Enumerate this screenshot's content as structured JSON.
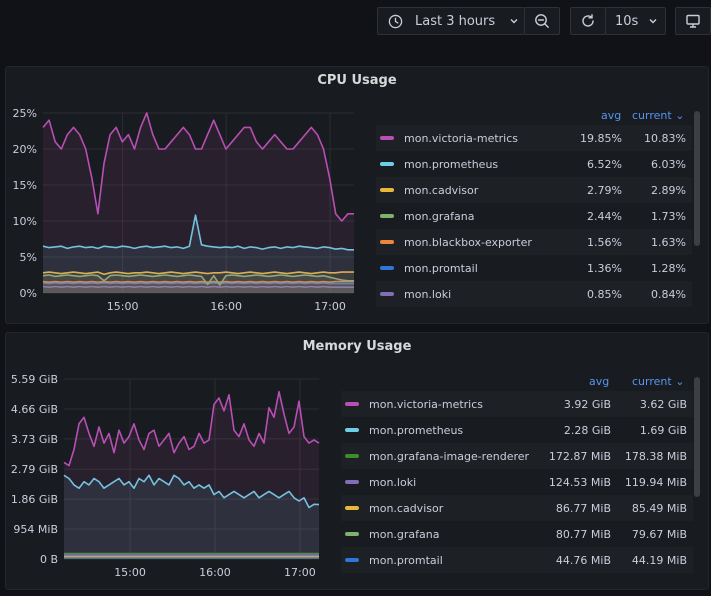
{
  "toolbar": {
    "time_range": "Last 3 hours",
    "refresh_interval": "10s"
  },
  "colors": {
    "victoria": "#b84fb4",
    "prometheus": "#6ccfe6",
    "cadvisor": "#eab839",
    "grafana": "#7eb26d",
    "blackbox": "#ef843c",
    "promtail": "#3274d9",
    "loki": "#806eb7",
    "grafana_image_renderer": "#3f8a2f"
  },
  "cpu": {
    "title": "CPU Usage",
    "legend_headers": {
      "avg": "avg",
      "current": "current"
    },
    "legend": [
      {
        "name": "mon.victoria-metrics",
        "avg": "19.85%",
        "current": "10.83%",
        "color": "#b84fb4"
      },
      {
        "name": "mon.prometheus",
        "avg": "6.52%",
        "current": "6.03%",
        "color": "#6ccfe6"
      },
      {
        "name": "mon.cadvisor",
        "avg": "2.79%",
        "current": "2.89%",
        "color": "#eab839"
      },
      {
        "name": "mon.grafana",
        "avg": "2.44%",
        "current": "1.73%",
        "color": "#7eb26d"
      },
      {
        "name": "mon.blackbox-exporter",
        "avg": "1.56%",
        "current": "1.63%",
        "color": "#ef843c"
      },
      {
        "name": "mon.promtail",
        "avg": "1.36%",
        "current": "1.28%",
        "color": "#3274d9"
      },
      {
        "name": "mon.loki",
        "avg": "0.85%",
        "current": "0.84%",
        "color": "#806eb7"
      }
    ]
  },
  "memory": {
    "title": "Memory Usage",
    "legend_headers": {
      "avg": "avg",
      "current": "current"
    },
    "legend": [
      {
        "name": "mon.victoria-metrics",
        "avg": "3.92 GiB",
        "current": "3.62 GiB",
        "color": "#b84fb4"
      },
      {
        "name": "mon.prometheus",
        "avg": "2.28 GiB",
        "current": "1.69 GiB",
        "color": "#6ccfe6"
      },
      {
        "name": "mon.grafana-image-renderer",
        "avg": "172.87 MiB",
        "current": "178.38 MiB",
        "color": "#3f8a2f"
      },
      {
        "name": "mon.loki",
        "avg": "124.53 MiB",
        "current": "119.94 MiB",
        "color": "#806eb7"
      },
      {
        "name": "mon.cadvisor",
        "avg": "86.77 MiB",
        "current": "85.49 MiB",
        "color": "#eab839"
      },
      {
        "name": "mon.grafana",
        "avg": "80.77 MiB",
        "current": "79.67 MiB",
        "color": "#7eb26d"
      },
      {
        "name": "mon.promtail",
        "avg": "44.76 MiB",
        "current": "44.19 MiB",
        "color": "#3274d9"
      }
    ]
  },
  "chart_data": [
    {
      "type": "line",
      "title": "CPU Usage",
      "y_ticks": [
        "0%",
        "5%",
        "10%",
        "15%",
        "20%",
        "25%"
      ],
      "ylim": [
        0,
        25
      ],
      "x_ticks": [
        "15:00",
        "16:00",
        "17:00"
      ],
      "grid": true,
      "legend_placement": "right",
      "series": [
        {
          "name": "mon.victoria-metrics",
          "color": "#b84fb4",
          "values": [
            23,
            24,
            21,
            20,
            22,
            23,
            22,
            20,
            16,
            11,
            18,
            22,
            23,
            21,
            22,
            20,
            23,
            25,
            22,
            20,
            20,
            21,
            22,
            23,
            22,
            20,
            20,
            22,
            24,
            22,
            20,
            21,
            22,
            23,
            23,
            21,
            20,
            21,
            22,
            21,
            20,
            20,
            21,
            22,
            23,
            22,
            20,
            16,
            11,
            10,
            11,
            11
          ]
        },
        {
          "name": "mon.prometheus",
          "color": "#6ccfe6",
          "values": [
            6.5,
            6.3,
            6.4,
            6.5,
            6.2,
            6.4,
            6.5,
            6.3,
            6.4,
            6.2,
            6.5,
            6.4,
            6.3,
            6.5,
            6.4,
            6.2,
            6.4,
            6.5,
            6.3,
            6.4,
            6.5,
            6.3,
            6.4,
            6.2,
            6.5,
            10.8,
            6.7,
            6.5,
            6.4,
            6.3,
            6.4,
            6.3,
            6.5,
            6.2,
            6.4,
            6.3,
            6.1,
            6.3,
            6.4,
            6.2,
            6.4,
            6.3,
            6.5,
            6.4,
            6.3,
            6.2,
            6.4,
            6.3,
            6.1,
            6.2,
            6.0,
            6.0
          ]
        },
        {
          "name": "mon.cadvisor",
          "color": "#eab839",
          "values": [
            2.8,
            2.9,
            2.8,
            2.7,
            2.8,
            2.9,
            2.8,
            2.7,
            2.8,
            2.9,
            2.6,
            2.8,
            2.9,
            2.8,
            2.7,
            2.8,
            2.8,
            2.9,
            2.8,
            2.7,
            2.8,
            2.9,
            2.8,
            2.7,
            2.8,
            2.9,
            2.8,
            2.7,
            2.8,
            2.8,
            2.9,
            2.8,
            2.7,
            2.8,
            2.9,
            2.8,
            2.7,
            2.8,
            2.9,
            2.8,
            2.7,
            2.8,
            2.9,
            2.8,
            2.7,
            2.8,
            2.9,
            2.8,
            2.8,
            2.9,
            2.9,
            2.9
          ]
        },
        {
          "name": "mon.grafana",
          "color": "#7eb26d",
          "values": [
            2.4,
            2.5,
            2.3,
            2.4,
            2.5,
            2.4,
            2.3,
            2.4,
            2.5,
            2.4,
            1.7,
            2.4,
            2.5,
            2.4,
            2.3,
            2.4,
            2.5,
            2.4,
            2.3,
            2.4,
            2.5,
            2.4,
            2.3,
            2.4,
            2.5,
            2.4,
            2.3,
            1.2,
            2.4,
            1.1,
            2.4,
            2.5,
            2.4,
            2.3,
            2.4,
            2.5,
            2.4,
            2.3,
            2.4,
            2.5,
            2.4,
            2.3,
            2.4,
            2.5,
            2.4,
            2.3,
            2.4,
            2.2,
            2.0,
            1.8,
            1.7,
            1.7
          ]
        },
        {
          "name": "mon.blackbox-exporter",
          "color": "#ef843c",
          "values": [
            1.6,
            1.5,
            1.6,
            1.5,
            1.6,
            1.5,
            1.6,
            1.5,
            1.6,
            1.5,
            1.6,
            1.5,
            1.6,
            1.5,
            1.6,
            1.5,
            1.6,
            1.5,
            1.6,
            1.5,
            1.6,
            1.5,
            1.6,
            1.5,
            1.6,
            1.5,
            1.6,
            1.5,
            1.6,
            1.5,
            1.6,
            1.5,
            1.6,
            1.5,
            1.6,
            1.5,
            1.6,
            1.5,
            1.6,
            1.5,
            1.6,
            1.5,
            1.6,
            1.5,
            1.6,
            1.5,
            1.6,
            1.5,
            1.6,
            1.6,
            1.6,
            1.6
          ]
        },
        {
          "name": "mon.promtail",
          "color": "#3274d9",
          "values": [
            1.4,
            1.3,
            1.4,
            1.3,
            1.4,
            1.3,
            1.4,
            1.3,
            1.4,
            1.3,
            1.4,
            1.3,
            1.4,
            1.3,
            1.4,
            1.3,
            1.4,
            1.3,
            1.4,
            1.3,
            1.4,
            1.3,
            1.4,
            1.3,
            1.4,
            1.3,
            1.4,
            1.3,
            1.4,
            1.3,
            1.4,
            1.3,
            1.4,
            1.3,
            1.4,
            1.3,
            1.4,
            1.3,
            1.4,
            1.3,
            1.4,
            1.3,
            1.4,
            1.3,
            1.4,
            1.3,
            1.4,
            1.3,
            1.3,
            1.3,
            1.3,
            1.3
          ]
        },
        {
          "name": "mon.loki",
          "color": "#806eb7",
          "values": [
            0.9,
            0.8,
            0.9,
            0.8,
            0.9,
            0.8,
            0.9,
            0.8,
            0.9,
            0.8,
            0.9,
            0.8,
            0.9,
            0.8,
            0.9,
            0.8,
            0.9,
            0.8,
            0.9,
            0.8,
            0.9,
            0.8,
            0.9,
            0.8,
            0.9,
            0.8,
            0.9,
            0.8,
            0.9,
            0.8,
            0.9,
            0.8,
            0.9,
            0.8,
            0.9,
            0.8,
            0.9,
            0.8,
            0.9,
            0.8,
            0.9,
            0.8,
            0.9,
            0.8,
            0.9,
            0.8,
            0.9,
            0.8,
            0.8,
            0.8,
            0.8,
            0.8
          ]
        }
      ]
    },
    {
      "type": "line",
      "title": "Memory Usage",
      "y_ticks": [
        "0 B",
        "954 MiB",
        "1.86 GiB",
        "2.79 GiB",
        "3.73 GiB",
        "4.66 GiB",
        "5.59 GiB"
      ],
      "ylim_gib": [
        0,
        5.59
      ],
      "x_ticks": [
        "15:00",
        "16:00",
        "17:00"
      ],
      "grid": true,
      "legend_placement": "right",
      "series": [
        {
          "name": "mon.victoria-metrics",
          "color": "#b84fb4",
          "values_gib": [
            3.0,
            2.9,
            3.4,
            4.2,
            4.4,
            3.9,
            3.5,
            4.1,
            3.6,
            3.9,
            3.3,
            4.0,
            3.6,
            3.8,
            4.2,
            3.7,
            3.4,
            3.9,
            4.0,
            3.5,
            3.7,
            3.9,
            3.3,
            3.6,
            3.8,
            3.4,
            3.5,
            3.9,
            3.6,
            3.7,
            4.8,
            5.0,
            4.6,
            5.1,
            4.0,
            3.8,
            4.2,
            3.7,
            3.5,
            3.9,
            3.6,
            4.7,
            4.4,
            5.2,
            4.5,
            3.9,
            4.1,
            4.9,
            3.8,
            3.6,
            3.7,
            3.6
          ]
        },
        {
          "name": "mon.prometheus",
          "color": "#6ccfe6",
          "values_gib": [
            2.6,
            2.5,
            2.3,
            2.2,
            2.4,
            2.3,
            2.5,
            2.4,
            2.2,
            2.3,
            2.4,
            2.5,
            2.3,
            2.4,
            2.2,
            2.5,
            2.4,
            2.6,
            2.3,
            2.5,
            2.4,
            2.3,
            2.6,
            2.5,
            2.3,
            2.4,
            2.2,
            2.3,
            2.2,
            2.3,
            2.0,
            2.1,
            1.9,
            2.0,
            2.1,
            2.0,
            1.9,
            2.0,
            2.1,
            1.9,
            2.0,
            2.1,
            2.0,
            1.9,
            2.0,
            2.1,
            1.9,
            1.8,
            1.9,
            1.6,
            1.7,
            1.69
          ]
        },
        {
          "name": "mon.grafana-image-renderer",
          "color": "#3f8a2f",
          "values_gib": [
            0.17,
            0.17,
            0.17,
            0.17,
            0.17,
            0.17,
            0.17,
            0.17,
            0.17,
            0.17,
            0.17,
            0.17,
            0.17,
            0.17,
            0.17,
            0.17,
            0.17,
            0.17,
            0.17,
            0.17,
            0.17,
            0.17,
            0.17,
            0.17,
            0.17,
            0.17,
            0.17,
            0.17,
            0.17,
            0.17,
            0.17,
            0.17,
            0.17,
            0.17,
            0.17,
            0.17,
            0.17,
            0.17,
            0.17,
            0.17,
            0.17,
            0.17,
            0.17,
            0.17,
            0.17,
            0.17,
            0.17,
            0.17,
            0.17,
            0.17,
            0.17,
            0.17
          ]
        },
        {
          "name": "mon.loki",
          "color": "#806eb7",
          "values_gib": [
            0.12,
            0.12,
            0.12,
            0.12,
            0.12,
            0.12,
            0.12,
            0.12,
            0.12,
            0.12,
            0.12,
            0.12,
            0.12,
            0.12,
            0.12,
            0.12,
            0.12,
            0.12,
            0.12,
            0.12,
            0.12,
            0.12,
            0.12,
            0.12,
            0.12,
            0.12,
            0.12,
            0.12,
            0.12,
            0.12,
            0.12,
            0.12,
            0.12,
            0.12,
            0.12,
            0.12,
            0.12,
            0.12,
            0.12,
            0.12,
            0.12,
            0.12,
            0.12,
            0.12,
            0.12,
            0.12,
            0.12,
            0.12,
            0.12,
            0.12,
            0.12,
            0.12
          ]
        },
        {
          "name": "mon.cadvisor",
          "color": "#eab839",
          "values_gib": [
            0.085,
            0.085,
            0.085,
            0.085,
            0.085,
            0.085,
            0.085,
            0.085,
            0.085,
            0.085,
            0.085,
            0.085,
            0.085,
            0.085,
            0.085,
            0.085,
            0.085,
            0.085,
            0.085,
            0.085,
            0.085,
            0.085,
            0.085,
            0.085,
            0.085,
            0.085,
            0.085,
            0.085,
            0.085,
            0.085,
            0.085,
            0.085,
            0.085,
            0.085,
            0.085,
            0.085,
            0.085,
            0.085,
            0.085,
            0.085,
            0.085,
            0.085,
            0.085,
            0.085,
            0.085,
            0.085,
            0.085,
            0.085,
            0.085,
            0.085,
            0.085,
            0.085
          ]
        },
        {
          "name": "mon.grafana",
          "color": "#7eb26d",
          "values_gib": [
            0.08,
            0.08,
            0.08,
            0.08,
            0.08,
            0.08,
            0.08,
            0.08,
            0.08,
            0.08,
            0.08,
            0.08,
            0.08,
            0.08,
            0.08,
            0.08,
            0.08,
            0.08,
            0.08,
            0.08,
            0.08,
            0.08,
            0.08,
            0.08,
            0.08,
            0.08,
            0.08,
            0.08,
            0.08,
            0.08,
            0.08,
            0.08,
            0.08,
            0.08,
            0.08,
            0.08,
            0.08,
            0.08,
            0.08,
            0.08,
            0.08,
            0.08,
            0.08,
            0.08,
            0.08,
            0.08,
            0.08,
            0.08,
            0.08,
            0.08,
            0.08,
            0.08
          ]
        },
        {
          "name": "mon.promtail",
          "color": "#3274d9",
          "values_gib": [
            0.044,
            0.044,
            0.044,
            0.044,
            0.044,
            0.044,
            0.044,
            0.044,
            0.044,
            0.044,
            0.044,
            0.044,
            0.044,
            0.044,
            0.044,
            0.044,
            0.044,
            0.044,
            0.044,
            0.044,
            0.044,
            0.044,
            0.044,
            0.044,
            0.044,
            0.044,
            0.044,
            0.044,
            0.044,
            0.044,
            0.044,
            0.044,
            0.044,
            0.044,
            0.044,
            0.044,
            0.044,
            0.044,
            0.044,
            0.044,
            0.044,
            0.044,
            0.044,
            0.044,
            0.044,
            0.044,
            0.044,
            0.044,
            0.044,
            0.044,
            0.044,
            0.044
          ]
        }
      ]
    }
  ]
}
